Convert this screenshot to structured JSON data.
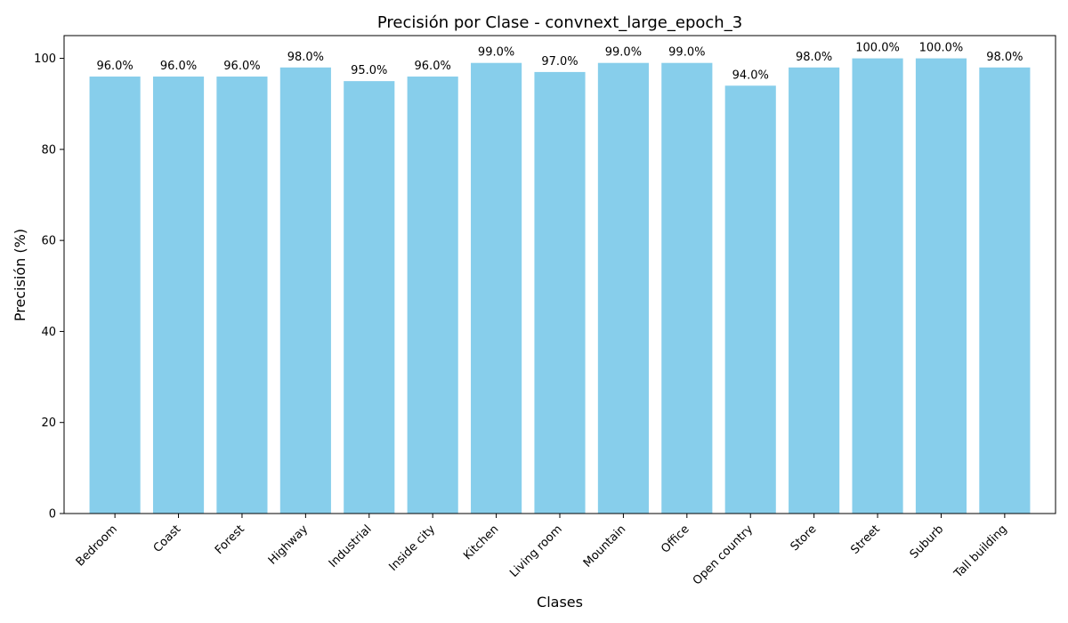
{
  "chart_data": {
    "type": "bar",
    "title": "Precisión por Clase - convnext_large_epoch_3",
    "xlabel": "Clases",
    "ylabel": "Precisión (%)",
    "categories": [
      "Bedroom",
      "Coast",
      "Forest",
      "Highway",
      "Industrial",
      "Inside city",
      "Kitchen",
      "Living room",
      "Mountain",
      "Office",
      "Open country",
      "Store",
      "Street",
      "Suburb",
      "Tall building"
    ],
    "values": [
      96,
      96,
      96,
      98,
      95,
      96,
      99,
      97,
      99,
      99,
      94,
      98,
      100,
      100,
      98
    ],
    "data_labels": [
      "96.0%",
      "96.0%",
      "96.0%",
      "98.0%",
      "95.0%",
      "96.0%",
      "99.0%",
      "97.0%",
      "99.0%",
      "99.0%",
      "94.0%",
      "98.0%",
      "100.0%",
      "100.0%",
      "98.0%"
    ],
    "yticks": [
      0,
      20,
      40,
      60,
      80,
      100
    ],
    "ylim": [
      0,
      105
    ],
    "grid": false,
    "bar_color": "#87CEEB"
  }
}
